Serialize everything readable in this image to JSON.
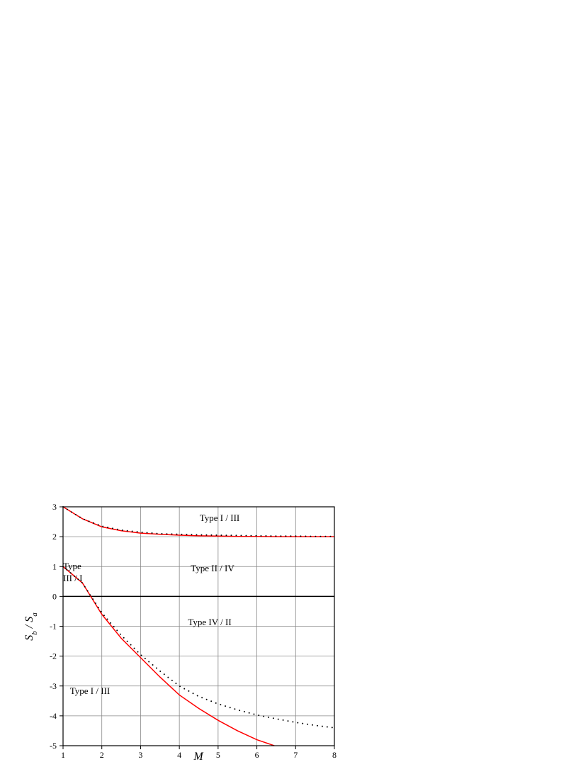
{
  "chart_data": {
    "type": "line",
    "xlabel": "M",
    "ylabel": [
      "S",
      "b",
      " / ",
      "S",
      "a"
    ],
    "xlim": [
      1,
      8
    ],
    "ylim": [
      -5,
      3
    ],
    "xticks": [
      1,
      2,
      3,
      4,
      5,
      6,
      7,
      8
    ],
    "yticks": [
      -5,
      -4,
      -3,
      -2,
      -1,
      0,
      1,
      2,
      3
    ],
    "grid": true,
    "annotations": [
      "Type I / III",
      "Type II / IV",
      "Type",
      "III / I",
      "Type IV / II",
      "Type I / III"
    ],
    "series": [
      {
        "color": "#ff0000",
        "dash": "solid",
        "x": [
          1,
          1.5,
          2,
          2.5,
          3,
          3.5,
          4,
          4.5,
          5,
          5.5,
          6,
          6.5,
          7,
          7.5,
          8
        ],
        "values": [
          3,
          2.6,
          2.33,
          2.2,
          2.12,
          2.08,
          2.05,
          2.03,
          2.02,
          2.01,
          2.01,
          2.0,
          2.0,
          2.0,
          2.0
        ]
      },
      {
        "color": "#000000",
        "dash": "dotted",
        "x": [
          1,
          1.5,
          2,
          2.5,
          3,
          3.5,
          4,
          4.5,
          5,
          5.5,
          6,
          6.5,
          7,
          7.5,
          8
        ],
        "values": [
          3,
          2.6,
          2.35,
          2.22,
          2.15,
          2.1,
          2.08,
          2.06,
          2.05,
          2.04,
          2.03,
          2.02,
          2.02,
          2.01,
          2.01
        ]
      },
      {
        "color": "#ff0000",
        "dash": "solid",
        "x": [
          1,
          1.5,
          2,
          2.5,
          3,
          3.5,
          4,
          4.5,
          5,
          5.5,
          6,
          6.45
        ],
        "values": [
          1,
          0.45,
          -0.6,
          -1.4,
          -2.05,
          -2.7,
          -3.3,
          -3.75,
          -4.15,
          -4.5,
          -4.8,
          -5
        ]
      },
      {
        "color": "#000000",
        "dash": "dotted",
        "x": [
          1,
          1.5,
          2,
          2.5,
          3,
          3.5,
          4,
          4.5,
          5,
          5.5,
          6,
          6.5,
          7,
          7.5,
          8
        ],
        "values": [
          1,
          0.45,
          -0.55,
          -1.3,
          -1.95,
          -2.5,
          -3.0,
          -3.35,
          -3.6,
          -3.8,
          -3.97,
          -4.1,
          -4.22,
          -4.32,
          -4.4
        ]
      }
    ]
  }
}
